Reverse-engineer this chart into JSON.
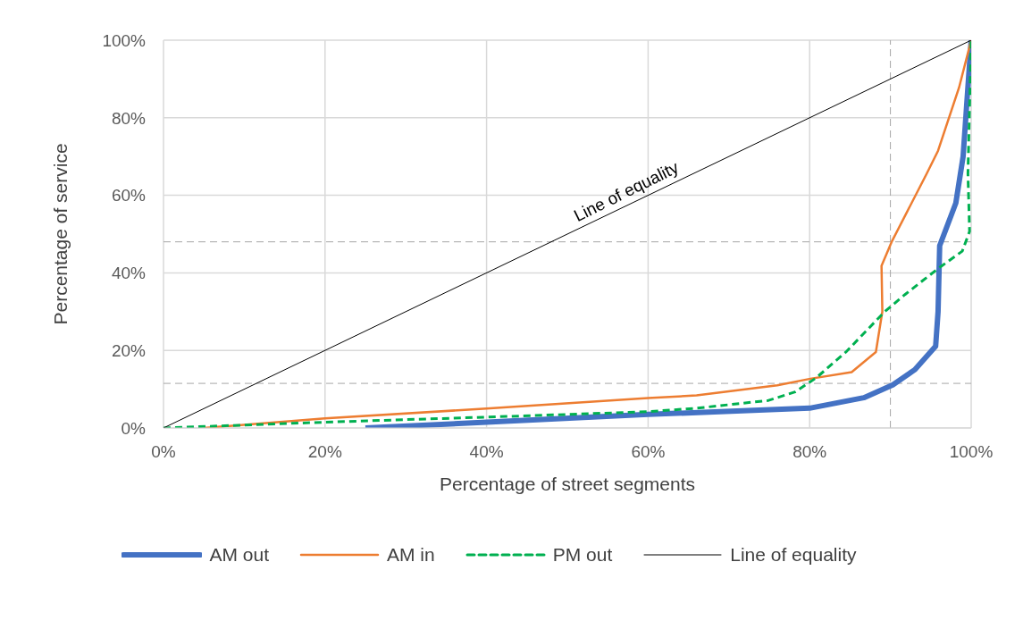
{
  "chart_data": {
    "type": "line",
    "xlabel": "Percentage of street segments",
    "ylabel": "Percentage of service",
    "xlim": [
      0,
      100
    ],
    "ylim": [
      0,
      100
    ],
    "xticks": [
      {
        "value": 0,
        "label": "0%"
      },
      {
        "value": 20,
        "label": "20%"
      },
      {
        "value": 40,
        "label": "40%"
      },
      {
        "value": 60,
        "label": "60%"
      },
      {
        "value": 80,
        "label": "80%"
      },
      {
        "value": 100,
        "label": "100%"
      }
    ],
    "yticks": [
      {
        "value": 0,
        "label": "0%"
      },
      {
        "value": 20,
        "label": "20%"
      },
      {
        "value": 40,
        "label": "40%"
      },
      {
        "value": 60,
        "label": "60%"
      },
      {
        "value": 80,
        "label": "80%"
      },
      {
        "value": 100,
        "label": "100%"
      }
    ],
    "grid": true,
    "legend": "bottom",
    "marker": "none",
    "series": [
      {
        "name": "AM out",
        "color": "#4472c4",
        "line_style": "solid",
        "x": [
          25,
          40,
          60,
          80,
          86.7,
          90.3,
          93,
          95.6,
          95.9,
          96.1,
          98.1,
          99,
          100
        ],
        "values": [
          0,
          1.5,
          3.5,
          5.1,
          7.8,
          11.1,
          15,
          21.1,
          30,
          47,
          58,
          70,
          100
        ]
      },
      {
        "name": "AM in",
        "color": "#ed7d31",
        "line_style": "solid",
        "x": [
          5,
          20,
          40,
          60,
          66,
          76,
          80.1,
          85.2,
          88.2,
          89,
          88.9,
          90.2,
          94.5,
          95.9,
          98.5,
          100
        ],
        "values": [
          0,
          2.5,
          5,
          7.7,
          8.4,
          11,
          12.7,
          14.4,
          19.6,
          30,
          41.8,
          48.2,
          65.6,
          71.5,
          87.8,
          100
        ]
      },
      {
        "name": "PM out",
        "color": "#00b050",
        "line_style": "dashed",
        "x": [
          0,
          20,
          40,
          60,
          66,
          74.9,
          78.2,
          80.8,
          84.5,
          89.3,
          91.8,
          95.9,
          98.9,
          99.8,
          99.6,
          100
        ],
        "values": [
          0,
          1.5,
          2.8,
          4.2,
          5.1,
          7.1,
          9.3,
          12.9,
          19.6,
          30,
          34.4,
          41.1,
          45.6,
          50.7,
          65.6,
          100
        ]
      },
      {
        "name": "Line of equality",
        "color": "#000000",
        "line_style": "solid",
        "x": [
          0,
          100
        ],
        "values": [
          0,
          100
        ]
      }
    ],
    "ref_lines": [
      {
        "axis": "x",
        "value": 90,
        "color": "#a6a6a6",
        "line_style": "dashed"
      },
      {
        "axis": "y",
        "value": 48,
        "color": "#a6a6a6",
        "line_style": "dashed"
      },
      {
        "axis": "y",
        "value": 11.5,
        "color": "#a6a6a6",
        "line_style": "dashed"
      }
    ],
    "annotations": [
      {
        "text": "Line of equality",
        "x": 58,
        "y": 58
      }
    ]
  }
}
